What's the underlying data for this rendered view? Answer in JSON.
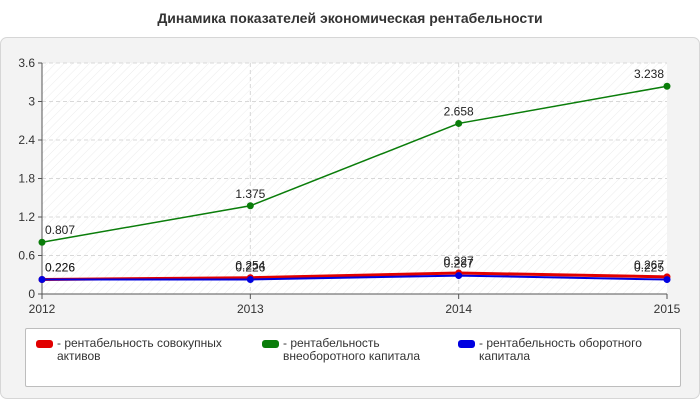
{
  "chart_data": {
    "type": "line",
    "title": "Динамика показателей экономическая рентабельности",
    "xlabel": "",
    "ylabel": "",
    "x": [
      "2012",
      "2013",
      "2014",
      "2015"
    ],
    "ylim": [
      0,
      3.6
    ],
    "yticks": [
      "0",
      "0.6",
      "1.2",
      "1.8",
      "2.4",
      "3",
      "3.6"
    ],
    "grid": true,
    "legend_position": "bottom",
    "series": [
      {
        "name": "- рентабельность совокупных активов",
        "color": "#e10000",
        "values": [
          0.226,
          0.254,
          0.327,
          0.267
        ],
        "labels": [
          "0.226",
          "0.254",
          "0.327",
          "0.267"
        ]
      },
      {
        "name": "- рентабельность внеоборотного капитала",
        "color": "#0a7d0a",
        "values": [
          0.807,
          1.375,
          2.658,
          3.238
        ],
        "labels": [
          "0.807",
          "1.375",
          "2.658",
          "3.238"
        ]
      },
      {
        "name": "- рентабельность оборотного капитала",
        "color": "#0000e0",
        "values": [
          0.226,
          0.226,
          0.287,
          0.225
        ],
        "labels": [
          "0.226",
          "0.226",
          "0.287",
          "0.225"
        ]
      }
    ]
  }
}
